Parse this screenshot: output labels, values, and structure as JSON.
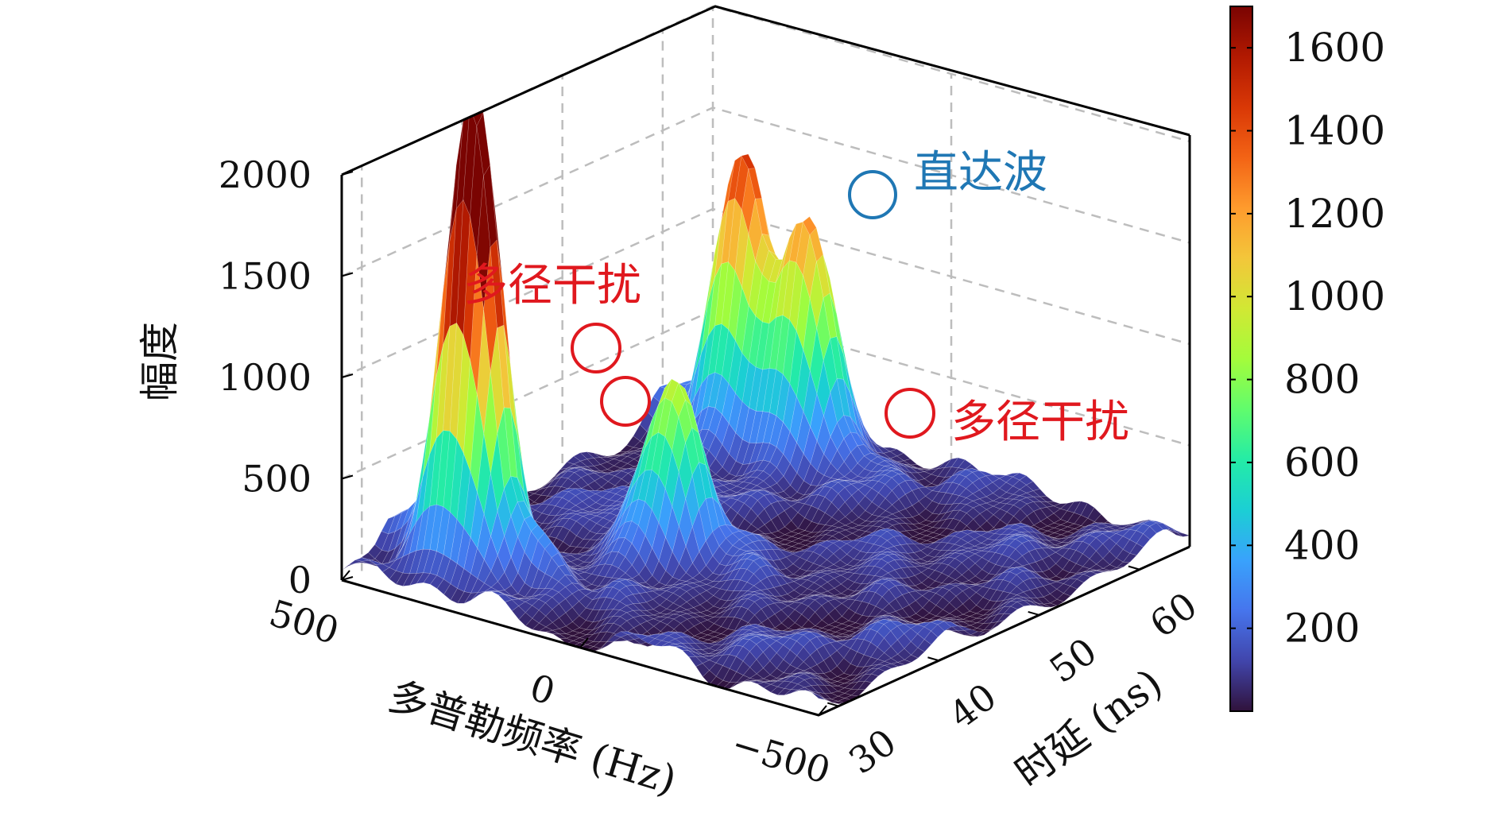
{
  "chart_data": {
    "type": "surface3d",
    "title": "",
    "xlabel": "多普勒频率 (Hz)",
    "ylabel": "时延 (ns)",
    "zlabel": "幅度",
    "x_ticks": [
      "500",
      "0",
      "−500"
    ],
    "x_range": [
      500,
      -500
    ],
    "y_ticks": [
      "30",
      "40",
      "50",
      "60"
    ],
    "y_range": [
      28,
      65
    ],
    "z_ticks": [
      "0",
      "500",
      "1000",
      "1500",
      "2000"
    ],
    "z_range": [
      0,
      2000
    ],
    "colorbar": {
      "ticks": [
        "200",
        "400",
        "600",
        "800",
        "1000",
        "1200",
        "1400",
        "1600"
      ],
      "range": [
        0,
        1700
      ],
      "colormap": [
        "#30123b",
        "#4145ab",
        "#4675ed",
        "#39a2fc",
        "#1bcfd4",
        "#24eca6",
        "#61fc6c",
        "#a4fc3b",
        "#d1e834",
        "#f3c63a",
        "#fe9b2d",
        "#f36315",
        "#d93806",
        "#b11901",
        "#7a0402"
      ]
    },
    "grid": true,
    "peaks": [
      {
        "x": 330,
        "y": 33,
        "z": 1900,
        "label": "直达波"
      },
      {
        "x": 100,
        "y": 42,
        "z": 750,
        "label": "多径干扰"
      },
      {
        "x": 330,
        "y": 60,
        "z": 1150,
        "label": "多径干扰"
      },
      {
        "x": 200,
        "y": 60,
        "z": 900,
        "label": "多径干扰"
      }
    ],
    "annotations": [
      {
        "text": "直达波",
        "color": "#1f77b4"
      },
      {
        "text": "多径干扰",
        "color": "#e0181e"
      },
      {
        "text": "多径干扰",
        "color": "#e0181e"
      }
    ]
  }
}
